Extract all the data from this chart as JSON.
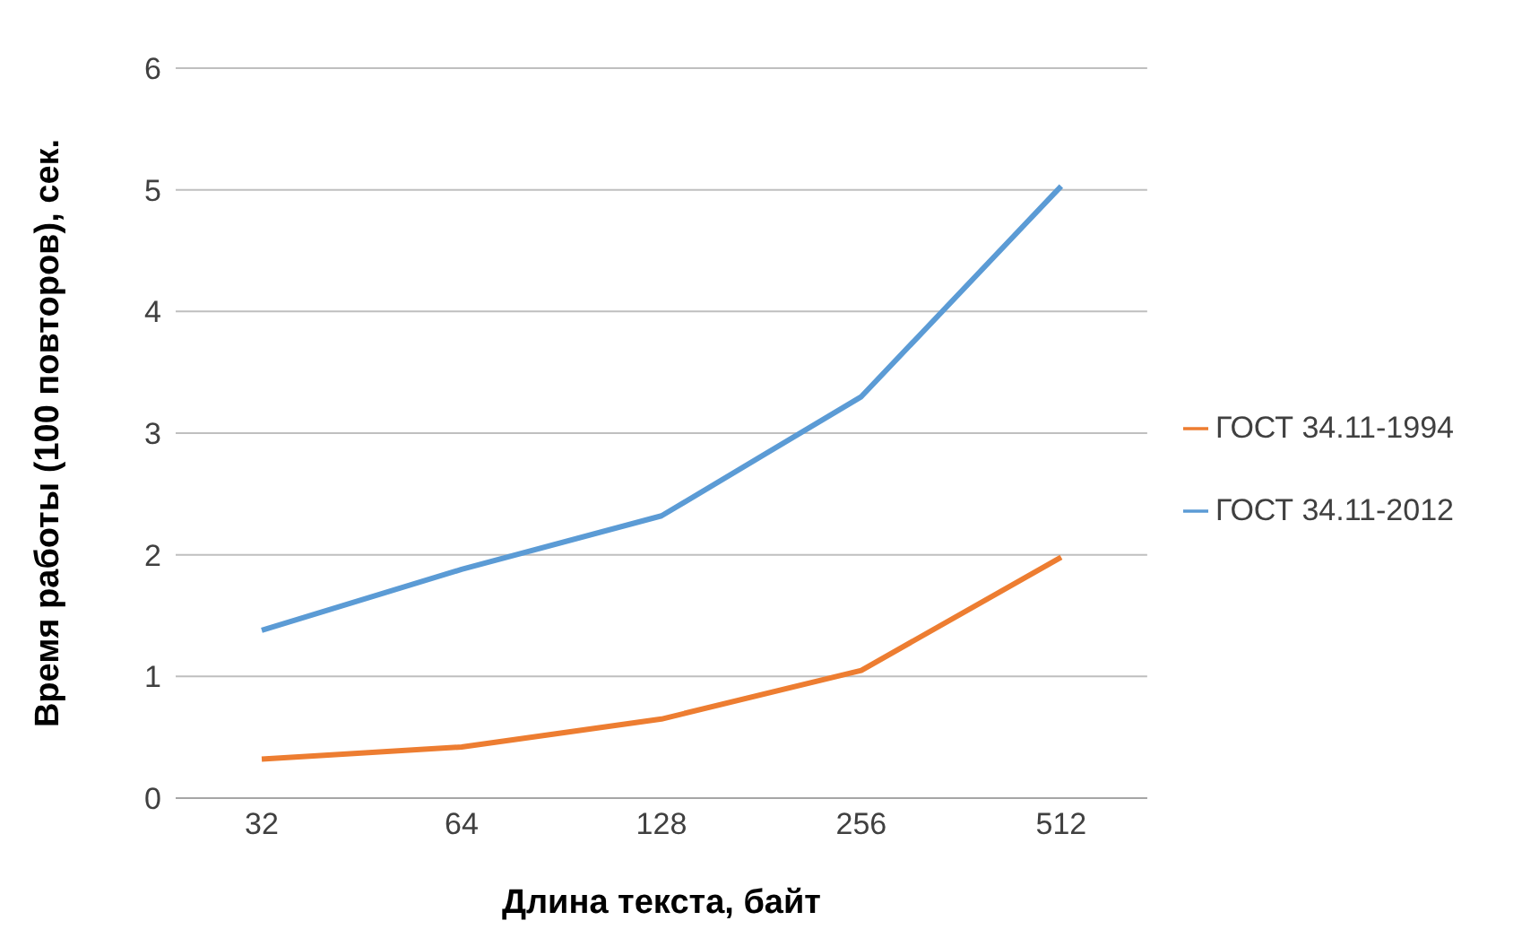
{
  "chart_data": {
    "type": "line",
    "xlabel": "Длина текста, байт",
    "ylabel": "Время работы (100 повторов), сек.",
    "categories": [
      "32",
      "64",
      "128",
      "256",
      "512"
    ],
    "series": [
      {
        "name": "ГОСТ 34.11-1994",
        "color": "#ed7d31",
        "values": [
          0.32,
          0.42,
          0.65,
          1.05,
          1.98
        ]
      },
      {
        "name": "ГОСТ 34.11-2012",
        "color": "#5b9bd5",
        "values": [
          1.38,
          1.88,
          2.32,
          3.3,
          5.03
        ]
      }
    ],
    "ylim": [
      0,
      6
    ],
    "yticks": [
      0,
      1,
      2,
      3,
      4,
      5,
      6
    ],
    "grid": "y",
    "legend": "right",
    "marker": "none",
    "line_style": "solid"
  }
}
